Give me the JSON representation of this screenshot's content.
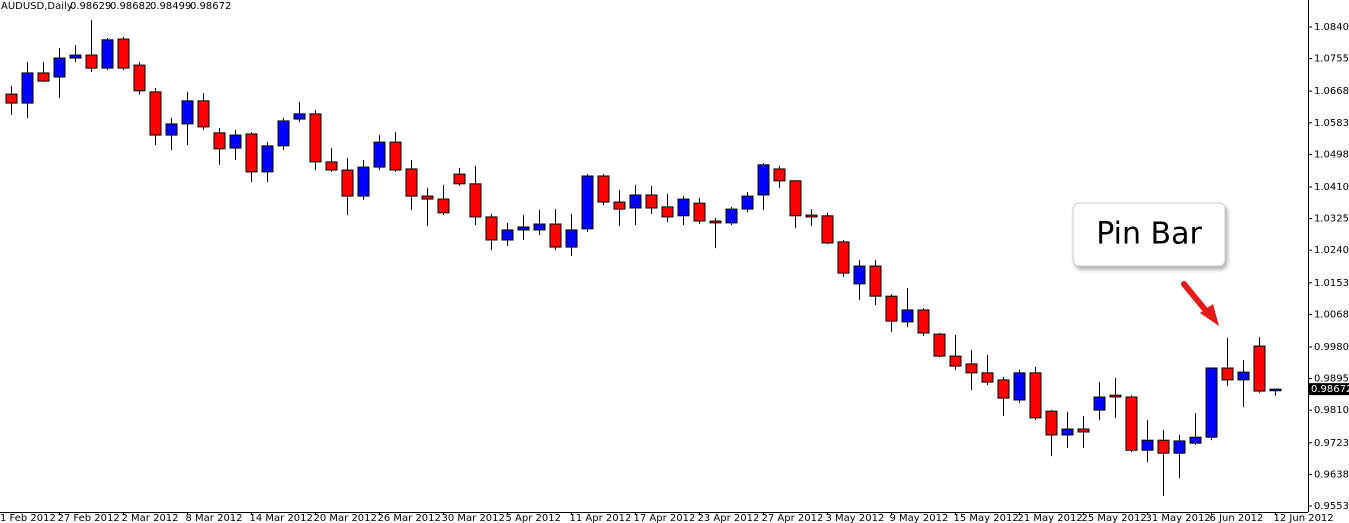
{
  "chart_data": {
    "type": "candlestick",
    "title": "AUDUSD,Daily",
    "annotation": "Pin Bar",
    "partial_date_label": "1 Feb 2012",
    "categories": [
      null,
      null,
      null,
      "27 Feb 2012",
      null,
      null,
      null,
      "2 Mar 2012",
      null,
      null,
      null,
      "8 Mar 2012",
      null,
      null,
      null,
      "14 Mar 2012",
      null,
      null,
      null,
      "20 Mar 2012",
      null,
      null,
      null,
      "26 Mar 2012",
      null,
      null,
      null,
      "30 Mar 2012",
      null,
      null,
      null,
      "5 Apr 2012",
      null,
      null,
      null,
      "11 Apr 2012",
      null,
      null,
      null,
      "17 Apr 2012",
      null,
      null,
      null,
      "23 Apr 2012",
      null,
      null,
      null,
      "27 Apr 2012",
      null,
      null,
      null,
      "3 May 2012",
      null,
      null,
      null,
      "9 May 2012",
      null,
      null,
      null,
      "15 May 2012",
      null,
      null,
      null,
      "21 May 2012",
      null,
      null,
      null,
      "25 May 2012",
      null,
      null,
      null,
      "31 May 2012",
      null,
      null,
      null,
      "6 Jun 2012",
      null,
      null,
      null,
      "12 Jun 2012"
    ],
    "open": [
      1.066,
      1.0636,
      1.0717,
      1.0706,
      1.0757,
      1.0765,
      1.073,
      1.0808,
      1.0738,
      1.0666,
      1.055,
      1.058,
      1.0642,
      1.0556,
      1.0515,
      1.0553,
      1.0451,
      1.0521,
      1.0593,
      1.0607,
      1.0478,
      1.0456,
      1.0386,
      1.0464,
      1.0531,
      1.0459,
      1.0386,
      1.0378,
      1.0445,
      1.0419,
      1.033,
      1.0268,
      1.0295,
      1.0295,
      1.0311,
      1.0249,
      1.0298,
      1.044,
      1.037,
      1.0354,
      1.0389,
      1.0357,
      1.0333,
      1.0367,
      1.0319,
      1.0314,
      1.0351,
      1.0389,
      1.0459,
      1.0427,
      1.0335,
      1.0333,
      1.0263,
      1.015,
      1.0198,
      1.0117,
      1.0048,
      1.008,
      1.0015,
      0.9956,
      0.9935,
      0.9911,
      0.9892,
      0.9838,
      0.9911,
      0.9808,
      0.9744,
      0.976,
      0.9811,
      0.9851,
      0.9846,
      0.9703,
      0.973,
      0.9695,
      0.9722,
      0.9738,
      0.9924,
      0.9892,
      0.9983,
      0.98629
    ],
    "high": [
      1.0682,
      1.0746,
      1.0746,
      1.0784,
      1.0792,
      1.0859,
      1.0811,
      1.0814,
      1.0746,
      1.0677,
      1.0596,
      1.0666,
      1.0663,
      1.0569,
      1.0564,
      1.0558,
      1.0531,
      1.0596,
      1.0639,
      1.0617,
      1.0515,
      1.0488,
      1.0483,
      1.055,
      1.0558,
      1.0483,
      1.0408,
      1.0416,
      1.0462,
      1.0467,
      1.0338,
      1.0314,
      1.0335,
      1.0349,
      1.0351,
      1.0338,
      1.0445,
      1.0445,
      1.0402,
      1.0416,
      1.0413,
      1.0392,
      1.0386,
      1.0381,
      1.0327,
      1.0357,
      1.0397,
      1.0475,
      1.0467,
      1.0429,
      1.0351,
      1.0341,
      1.0268,
      1.0214,
      1.0214,
      1.0123,
      1.0139,
      1.0085,
      1.0018,
      1.0013,
      0.9972,
      0.9959,
      0.99,
      0.9919,
      0.9927,
      0.9811,
      0.9806,
      0.9795,
      0.9886,
      0.9897,
      0.9851,
      0.9784,
      0.9757,
      0.9744,
      0.9803,
      0.9924,
      1.0005,
      0.9945,
      1.0007,
      0.98682
    ],
    "low": [
      1.0604,
      1.0596,
      1.0693,
      1.065,
      1.0746,
      1.072,
      1.0725,
      1.0725,
      1.0658,
      1.0523,
      1.051,
      1.0523,
      1.0564,
      1.047,
      1.0483,
      1.0424,
      1.0424,
      1.051,
      1.0585,
      1.0456,
      1.0451,
      1.0335,
      1.0376,
      1.0456,
      1.0451,
      1.0349,
      1.0306,
      1.0335,
      1.0413,
      1.0308,
      1.0241,
      1.0252,
      1.0268,
      1.0281,
      1.0241,
      1.0225,
      1.029,
      1.0362,
      1.0306,
      1.0308,
      1.0338,
      1.0316,
      1.0308,
      1.0311,
      1.0246,
      1.0308,
      1.0343,
      1.0349,
      1.0408,
      1.03,
      1.0306,
      1.0257,
      1.0169,
      1.0107,
      1.0093,
      1.0021,
      1.0034,
      1.001,
      0.9953,
      0.9919,
      0.9865,
      0.9878,
      0.9795,
      0.983,
      0.9784,
      0.9687,
      0.9709,
      0.9709,
      0.9784,
      0.979,
      0.9698,
      0.9671,
      0.958,
      0.9628,
      0.9717,
      0.973,
      0.9876,
      0.9819,
      0.9857,
      0.98499
    ],
    "close": [
      1.0636,
      1.0717,
      1.0695,
      1.0757,
      1.0765,
      1.073,
      1.0806,
      1.073,
      1.0669,
      1.055,
      1.058,
      1.0642,
      1.0572,
      1.0513,
      1.055,
      1.0451,
      1.0521,
      1.0588,
      1.0607,
      1.0478,
      1.0456,
      1.0386,
      1.0464,
      1.0531,
      1.0456,
      1.0386,
      1.0378,
      1.0341,
      1.0419,
      1.033,
      1.0268,
      1.0295,
      1.0303,
      1.0311,
      1.0249,
      1.0295,
      1.044,
      1.037,
      1.0351,
      1.0389,
      1.0354,
      1.033,
      1.0378,
      1.0319,
      1.0314,
      1.0351,
      1.0386,
      1.047,
      1.0427,
      1.0333,
      1.033,
      1.026,
      1.0179,
      1.0198,
      1.0117,
      1.005,
      1.008,
      1.0018,
      0.9956,
      0.9929,
      0.9911,
      0.9886,
      0.9843,
      0.9911,
      0.979,
      0.9744,
      0.976,
      0.9752,
      0.9846,
      0.9846,
      0.9703,
      0.973,
      0.9695,
      0.9728,
      0.9738,
      0.9924,
      0.9892,
      0.9913,
      0.9862,
      0.98672
    ],
    "up_color": "#0000ff",
    "down_color": "#ff0000",
    "ylim": [
      0.9537,
      1.0913
    ],
    "yticks": [
      1.08405,
      1.07555,
      {
        "value": 1.0668,
        "label": "1.06680"
      },
      {
        "value": 1.0583,
        "label": "1.05830"
      },
      {
        "value": 1.0498,
        "label": "1.04980"
      },
      1.04105,
      1.03255,
      1.02405,
      {
        "value": 1.0153,
        "label": "1.01530"
      },
      {
        "value": 1.0068,
        "label": "1.00680"
      },
      0.99805,
      0.98955,
      0.98105,
      {
        "value": 0.9723,
        "label": "0.97230"
      },
      {
        "value": 0.9638,
        "label": "0.96380"
      },
      {
        "value": 0.9553,
        "label": "0.95530"
      }
    ],
    "grid": false
  }
}
